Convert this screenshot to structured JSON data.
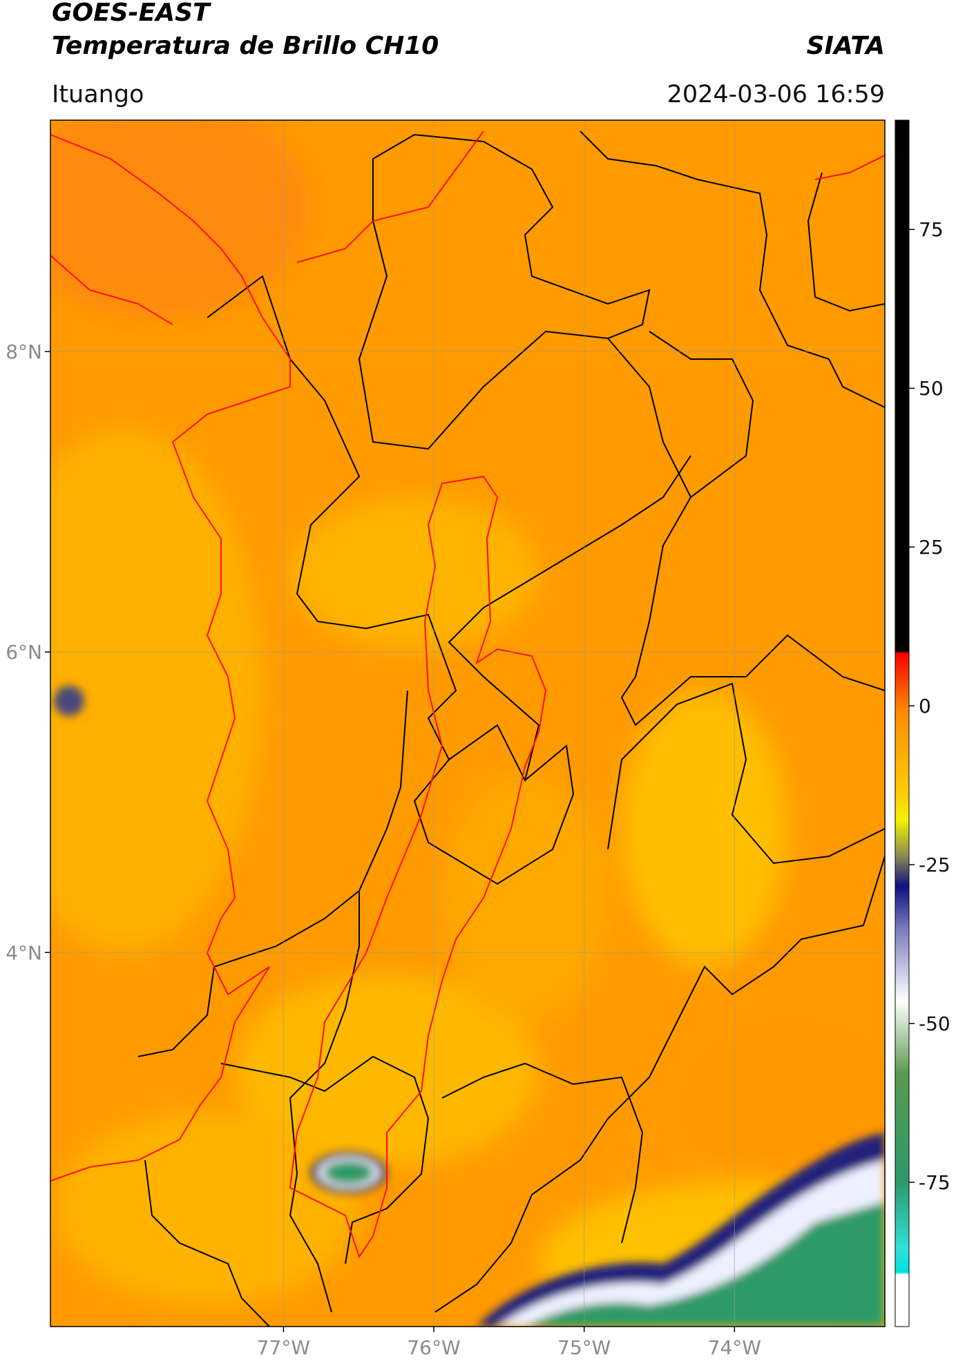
{
  "header": {
    "title": "GOES-EAST",
    "subtitle": "Temperatura de Brillo CH10",
    "brand": "SIATA",
    "location": "Ituango",
    "datetime": "2024-03-06 16:59"
  },
  "map": {
    "xlim": [
      -78.55,
      -73.0
    ],
    "ylim": [
      1.51,
      9.54
    ],
    "xticks": [
      {
        "value": -77,
        "label": "77°W"
      },
      {
        "value": -76,
        "label": "76°W"
      },
      {
        "value": -75,
        "label": "75°W"
      },
      {
        "value": -74,
        "label": "74°W"
      }
    ],
    "yticks": [
      {
        "value": 4,
        "label": "4°N"
      },
      {
        "value": 6,
        "label": "6°N"
      },
      {
        "value": 8,
        "label": "8°N"
      }
    ],
    "grid": true
  },
  "colorbar": {
    "lim": [
      -97.7,
      92.2
    ],
    "ticks": [
      -75,
      -50,
      -25,
      0,
      25,
      50,
      75
    ]
  }
}
